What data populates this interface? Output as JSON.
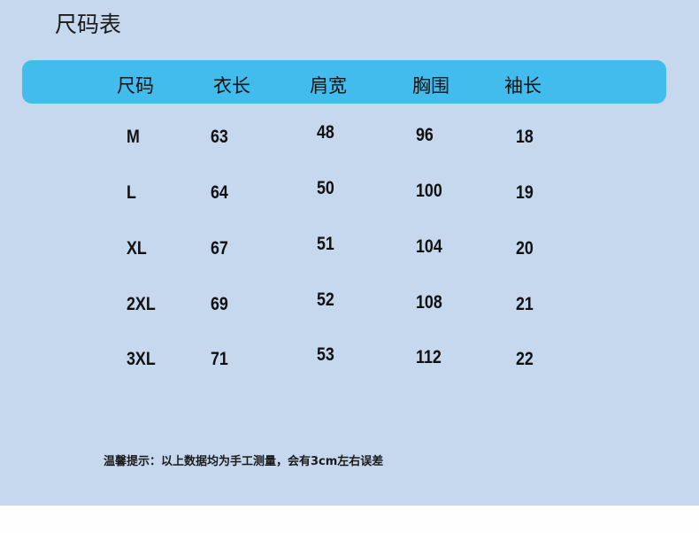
{
  "title": "尺码表",
  "headers": [
    "尺码",
    "衣长",
    "肩宽",
    "胸围",
    "袖长"
  ],
  "rows": [
    [
      "M",
      "63",
      "48",
      "96",
      "18"
    ],
    [
      "L",
      "64",
      "50",
      "100",
      "19"
    ],
    [
      "XL",
      "67",
      "51",
      "104",
      "20"
    ],
    [
      "2XL",
      "69",
      "52",
      "108",
      "21"
    ],
    [
      "3XL",
      "71",
      "53",
      "112",
      "22"
    ]
  ],
  "note": "温馨提示：以上数据均为手工测量，会有3cm左右误差",
  "colors": {
    "background": "#c5d8ee",
    "header_bar": "#41bcec"
  }
}
